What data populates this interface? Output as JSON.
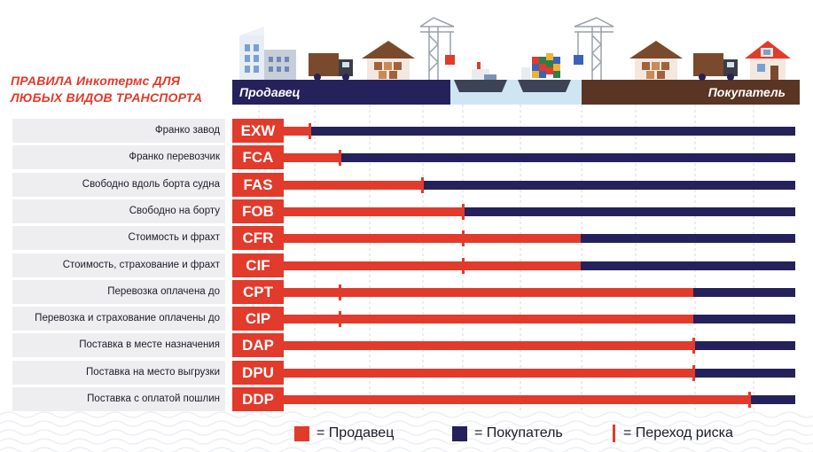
{
  "title_line1": "ПРАВИЛА Инкотермс ДЛЯ",
  "title_line2": "ЛЮБЫХ ВИДОВ ТРАНСПОРТА",
  "seller_label": "Продавец",
  "buyer_label": "Покупатель",
  "colors": {
    "seller": "#e23a2b",
    "buyer": "#25215a",
    "ground": "#5a3524",
    "water": "#cfe6f2"
  },
  "rules": [
    {
      "code": "EXW",
      "name": "Франко завод",
      "seller_share": 0.05,
      "risk_share": 0.05
    },
    {
      "code": "FCA",
      "name": "Франко перевозчик",
      "seller_share": 0.11,
      "risk_share": 0.11
    },
    {
      "code": "FAS",
      "name": "Свободно вдоль борта судна",
      "seller_share": 0.27,
      "risk_share": 0.27
    },
    {
      "code": "FOB",
      "name": "Свободно на борту",
      "seller_share": 0.35,
      "risk_share": 0.35
    },
    {
      "code": "CFR",
      "name": "Стоимость и фрахт",
      "seller_share": 0.58,
      "risk_share": 0.35
    },
    {
      "code": "CIF",
      "name": "Стоимость, страхование и фрахт",
      "seller_share": 0.58,
      "risk_share": 0.35
    },
    {
      "code": "CPT",
      "name": "Перевозка оплачена до",
      "seller_share": 0.8,
      "risk_share": 0.11
    },
    {
      "code": "CIP",
      "name": "Перевозка и страхование оплачены до",
      "seller_share": 0.8,
      "risk_share": 0.11
    },
    {
      "code": "DAP",
      "name": "Поставка в месте назначения",
      "seller_share": 0.8,
      "risk_share": 0.8
    },
    {
      "code": "DPU",
      "name": "Поставка на место выгрузки",
      "seller_share": 0.8,
      "risk_share": 0.8
    },
    {
      "code": "DDP",
      "name": "Поставка с оплатой пошлин",
      "seller_share": 0.91,
      "risk_share": 0.91
    }
  ],
  "legend": {
    "seller": "= Продавец",
    "buyer": "= Покупатель",
    "risk": "= Переход риска"
  }
}
